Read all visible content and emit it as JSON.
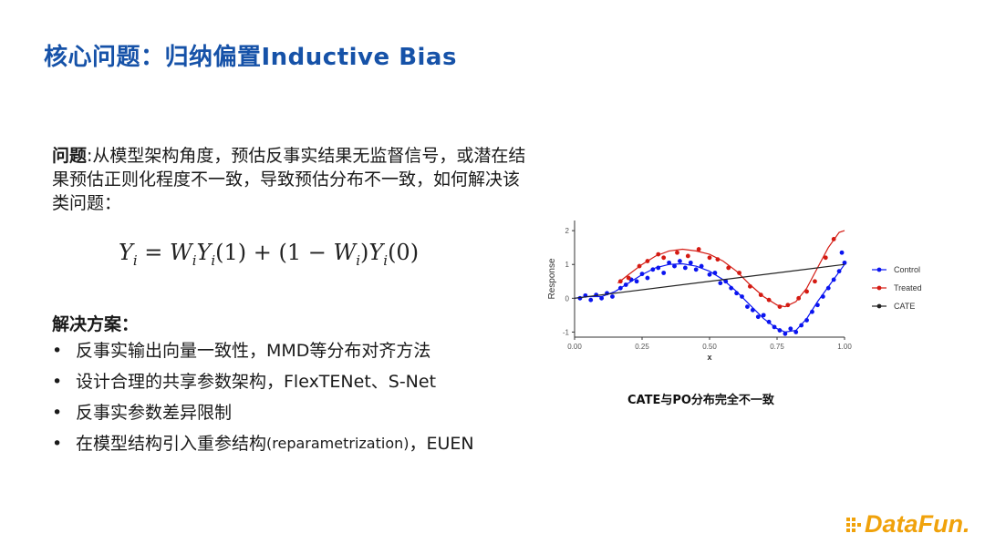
{
  "title": "核心问题：归纳偏置Inductive Bias",
  "problem": {
    "label": "问题",
    "text": ":从模型架构角度，预估反事实结果无监督信号，或潜在结果预估正则化程度不一致，导致预估分布不一致，如何解决该类问题："
  },
  "formula": {
    "Y": "Y",
    "i": "i",
    "eq": " = ",
    "W": "W",
    "one": "(1)",
    "plus": " + (1 − ",
    "close": ")",
    "zero": "(0)"
  },
  "solution": {
    "title": "解决方案：",
    "items": [
      {
        "text": "反事实输出向量一致性，MMD等分布对齐方法"
      },
      {
        "text": "设计合理的共享参数架构，FlexTENet、S-Net"
      },
      {
        "text": "反事实参数差异限制"
      },
      {
        "text": "在模型结构引入重参结构",
        "small": "(reparametrization)",
        "tail": "，EUEN"
      }
    ]
  },
  "chart_data": {
    "type": "scatter",
    "xlabel": "x",
    "ylabel": "Response",
    "xlim": [
      0,
      1
    ],
    "ylim": [
      -1.15,
      2.3
    ],
    "x_ticks": [
      "0.00",
      "0.25",
      "0.50",
      "0.75",
      "1.00"
    ],
    "y_ticks": [
      "-1",
      "0",
      "1",
      "2"
    ],
    "legend_position": "right",
    "series": [
      {
        "name": "Control",
        "color": "#0a14f0",
        "curve": [
          [
            0.0,
            0.0
          ],
          [
            0.05,
            0.05
          ],
          [
            0.1,
            0.05
          ],
          [
            0.15,
            0.2
          ],
          [
            0.2,
            0.45
          ],
          [
            0.25,
            0.7
          ],
          [
            0.3,
            0.9
          ],
          [
            0.35,
            1.0
          ],
          [
            0.4,
            1.02
          ],
          [
            0.45,
            0.95
          ],
          [
            0.5,
            0.8
          ],
          [
            0.55,
            0.55
          ],
          [
            0.6,
            0.2
          ],
          [
            0.65,
            -0.2
          ],
          [
            0.7,
            -0.6
          ],
          [
            0.75,
            -0.9
          ],
          [
            0.78,
            -1.0
          ],
          [
            0.82,
            -0.95
          ],
          [
            0.86,
            -0.6
          ],
          [
            0.9,
            -0.1
          ],
          [
            0.95,
            0.45
          ],
          [
            1.0,
            1.0
          ]
        ],
        "points": [
          [
            0.02,
            0.0
          ],
          [
            0.04,
            0.08
          ],
          [
            0.06,
            -0.05
          ],
          [
            0.08,
            0.1
          ],
          [
            0.1,
            0.0
          ],
          [
            0.12,
            0.15
          ],
          [
            0.14,
            0.05
          ],
          [
            0.17,
            0.3
          ],
          [
            0.19,
            0.4
          ],
          [
            0.21,
            0.55
          ],
          [
            0.23,
            0.5
          ],
          [
            0.25,
            0.72
          ],
          [
            0.27,
            0.6
          ],
          [
            0.29,
            0.85
          ],
          [
            0.31,
            0.9
          ],
          [
            0.33,
            0.75
          ],
          [
            0.35,
            1.05
          ],
          [
            0.37,
            0.95
          ],
          [
            0.39,
            1.1
          ],
          [
            0.41,
            0.9
          ],
          [
            0.43,
            1.05
          ],
          [
            0.45,
            0.85
          ],
          [
            0.47,
            0.95
          ],
          [
            0.5,
            0.7
          ],
          [
            0.52,
            0.75
          ],
          [
            0.54,
            0.45
          ],
          [
            0.56,
            0.5
          ],
          [
            0.58,
            0.3
          ],
          [
            0.6,
            0.15
          ],
          [
            0.62,
            0.05
          ],
          [
            0.64,
            -0.25
          ],
          [
            0.66,
            -0.35
          ],
          [
            0.68,
            -0.55
          ],
          [
            0.7,
            -0.5
          ],
          [
            0.72,
            -0.7
          ],
          [
            0.74,
            -0.85
          ],
          [
            0.76,
            -0.95
          ],
          [
            0.78,
            -1.05
          ],
          [
            0.8,
            -0.9
          ],
          [
            0.82,
            -1.0
          ],
          [
            0.84,
            -0.8
          ],
          [
            0.86,
            -0.65
          ],
          [
            0.88,
            -0.4
          ],
          [
            0.9,
            -0.2
          ],
          [
            0.92,
            0.05
          ],
          [
            0.94,
            0.3
          ],
          [
            0.96,
            0.55
          ],
          [
            0.98,
            0.8
          ],
          [
            1.0,
            1.05
          ],
          [
            0.99,
            1.35
          ]
        ]
      },
      {
        "name": "Treated",
        "color": "#d41a12",
        "curve": [
          [
            0.16,
            0.45
          ],
          [
            0.2,
            0.7
          ],
          [
            0.25,
            1.0
          ],
          [
            0.3,
            1.25
          ],
          [
            0.35,
            1.4
          ],
          [
            0.4,
            1.45
          ],
          [
            0.45,
            1.4
          ],
          [
            0.5,
            1.3
          ],
          [
            0.55,
            1.1
          ],
          [
            0.6,
            0.8
          ],
          [
            0.65,
            0.4
          ],
          [
            0.7,
            0.05
          ],
          [
            0.75,
            -0.2
          ],
          [
            0.78,
            -0.25
          ],
          [
            0.82,
            -0.1
          ],
          [
            0.86,
            0.3
          ],
          [
            0.9,
            0.9
          ],
          [
            0.94,
            1.5
          ],
          [
            0.98,
            1.95
          ],
          [
            1.0,
            2.0
          ]
        ],
        "points": [
          [
            0.17,
            0.5
          ],
          [
            0.2,
            0.6
          ],
          [
            0.24,
            0.95
          ],
          [
            0.27,
            1.1
          ],
          [
            0.31,
            1.3
          ],
          [
            0.33,
            1.2
          ],
          [
            0.38,
            1.35
          ],
          [
            0.42,
            1.25
          ],
          [
            0.46,
            1.45
          ],
          [
            0.5,
            1.2
          ],
          [
            0.53,
            1.15
          ],
          [
            0.57,
            0.9
          ],
          [
            0.61,
            0.75
          ],
          [
            0.65,
            0.35
          ],
          [
            0.69,
            0.1
          ],
          [
            0.72,
            -0.05
          ],
          [
            0.76,
            -0.25
          ],
          [
            0.79,
            -0.2
          ],
          [
            0.83,
            0.0
          ],
          [
            0.86,
            0.2
          ],
          [
            0.89,
            0.5
          ],
          [
            0.93,
            1.2
          ],
          [
            0.96,
            1.75
          ]
        ]
      },
      {
        "name": "CATE",
        "color": "#222222",
        "curve": [
          [
            0.0,
            0.0
          ],
          [
            1.0,
            1.0
          ]
        ],
        "points": []
      }
    ]
  },
  "caption": "CATE与PO分布完全不一致",
  "logo": {
    "text": "DataFun.",
    "color": "#f0a20b"
  }
}
